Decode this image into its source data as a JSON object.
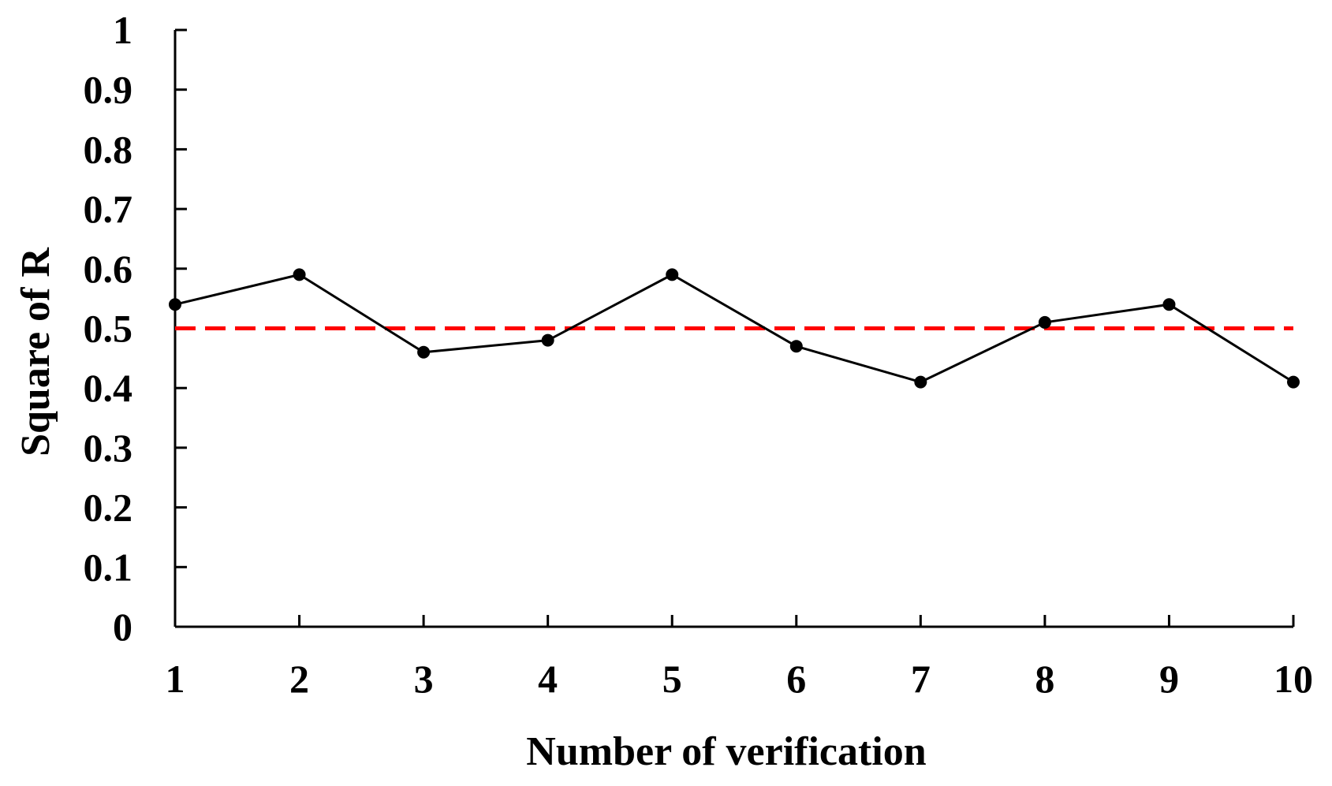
{
  "chart_data": {
    "type": "line",
    "title": "",
    "xlabel": "Number of  verification",
    "ylabel": "Square of R",
    "x": [
      1,
      2,
      3,
      4,
      5,
      6,
      7,
      8,
      9,
      10
    ],
    "x_tick_labels": [
      "1",
      "2",
      "3",
      "4",
      "5",
      "6",
      "7",
      "8",
      "9",
      "10"
    ],
    "y_tick_labels": [
      "0",
      "0.1",
      "0.2",
      "0.3",
      "0.4",
      "0.5",
      "0.6",
      "0.7",
      "0.8",
      "0.9",
      "1"
    ],
    "y_ticks": [
      0,
      0.1,
      0.2,
      0.3,
      0.4,
      0.5,
      0.6,
      0.7,
      0.8,
      0.9,
      1
    ],
    "xlim": [
      1,
      10
    ],
    "ylim": [
      0,
      1
    ],
    "grid": false,
    "series": [
      {
        "values": [
          0.54,
          0.59,
          0.46,
          0.48,
          0.59,
          0.47,
          0.41,
          0.51,
          0.54,
          0.41
        ],
        "color": "#000000",
        "marker": "circle"
      }
    ],
    "reference_line": {
      "y": 0.5,
      "color": "#ff0000",
      "style": "dashed"
    }
  }
}
